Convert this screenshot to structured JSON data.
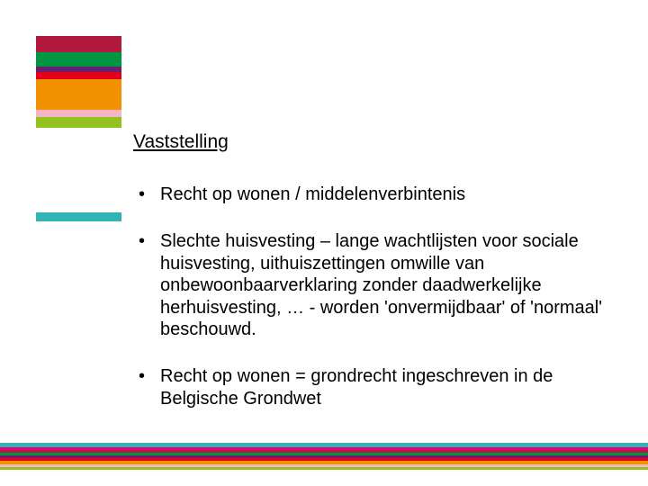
{
  "logo": {
    "stripes": [
      {
        "color": "#b1193f",
        "height": 18
      },
      {
        "color": "#009640",
        "height": 16
      },
      {
        "color": "#6a1e6f",
        "height": 6
      },
      {
        "color": "#e2001a",
        "height": 8
      },
      {
        "color": "#f39200",
        "height": 34
      },
      {
        "color": "#f6b4c4",
        "height": 8
      },
      {
        "color": "#95c11f",
        "height": 12
      }
    ]
  },
  "accent_bar_color": "#32b4b5",
  "heading": "Vaststelling",
  "bullets": [
    "Recht op wonen / middelenverbintenis",
    "Slechte huisvesting – lange wachtlijsten voor sociale huisvesting, uithuiszettingen omwille van onbewoonbaarverklaring zonder daadwerkelijke herhuisvesting, … - worden 'onvermijdbaar' of 'normaal' beschouwd.",
    "Recht op wonen = grondrecht ingeschreven in de Belgische Grondwet"
  ],
  "footer": {
    "stripes": [
      {
        "color": "#32b4b5",
        "height": 5
      },
      {
        "color": "#e6007e",
        "height": 3
      },
      {
        "color": "#b1193f",
        "height": 3
      },
      {
        "color": "#009640",
        "height": 3
      },
      {
        "color": "#6a1e6f",
        "height": 3
      },
      {
        "color": "#e2001a",
        "height": 3
      },
      {
        "color": "#f39200",
        "height": 4
      },
      {
        "color": "#f6b4c4",
        "height": 3
      },
      {
        "color": "#95c11f",
        "height": 3
      }
    ]
  },
  "background_color": "#ffffff",
  "text_color": "#000000",
  "heading_fontsize": 21,
  "body_fontsize": 20
}
